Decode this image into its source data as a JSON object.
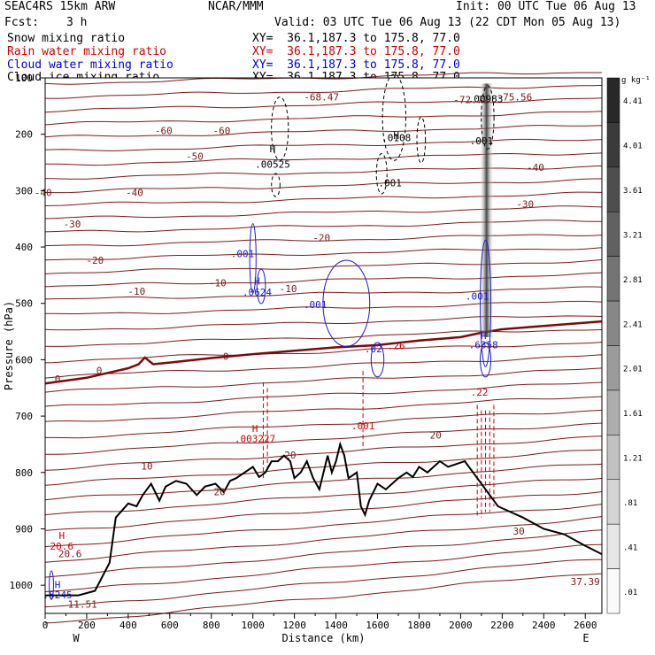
{
  "header": {
    "model": "SEAC4RS 15km ARW",
    "center": "NCAR/MMM",
    "init": "Init: 00 UTC Tue 06 Aug 13",
    "fcst_label": "Fcst:",
    "fcst_value": "3 h",
    "valid": "Valid: 03 UTC Tue 06 Aug 13 (22 CDT Mon 05 Aug 13)"
  },
  "fields": [
    {
      "name": "Snow mixing ratio",
      "xy": "XY=  36.1,187.3 to 175.8, 77.0",
      "color": "#000000"
    },
    {
      "name": "Rain water mixing ratio",
      "xy": "XY=  36.1,187.3 to 175.8, 77.0",
      "color": "#cc0000"
    },
    {
      "name": "Cloud water mixing ratio",
      "xy": "XY=  36.1,187.3 to 175.8, 77.0",
      "color": "#0000cc"
    },
    {
      "name": "Cloud ice mixing ratio",
      "xy": "XY=  36.1,187.3 to 175.8, 77.0",
      "color": "#000000"
    }
  ],
  "chart_data": {
    "type": "cross-section",
    "xlabel": "Distance (km)",
    "ylabel": "Pressure (hPa)",
    "xlim": [
      0,
      2680
    ],
    "ylim": [
      1050,
      100
    ],
    "x_ticks": [
      0,
      200,
      400,
      600,
      800,
      1000,
      1200,
      1400,
      1600,
      1800,
      2000,
      2200,
      2400,
      2600
    ],
    "y_ticks": [
      100,
      200,
      300,
      400,
      500,
      600,
      700,
      800,
      900,
      1000
    ],
    "x_end_labels": {
      "left": "W",
      "right": "E"
    },
    "colorbar": {
      "unit": "g kg⁻¹",
      "labels": [
        "4.41",
        "4.01",
        "3.61",
        "3.21",
        "2.81",
        "2.41",
        "2.01",
        "1.61",
        "1.21",
        ".81",
        ".41",
        ".01"
      ]
    },
    "terrain": [
      [
        0,
        1018
      ],
      [
        160,
        1018
      ],
      [
        240,
        1010
      ],
      [
        310,
        960
      ],
      [
        340,
        880
      ],
      [
        400,
        855
      ],
      [
        440,
        860
      ],
      [
        470,
        840
      ],
      [
        510,
        820
      ],
      [
        550,
        850
      ],
      [
        580,
        825
      ],
      [
        630,
        815
      ],
      [
        680,
        820
      ],
      [
        730,
        840
      ],
      [
        770,
        825
      ],
      [
        820,
        820
      ],
      [
        860,
        835
      ],
      [
        890,
        815
      ],
      [
        920,
        810
      ],
      [
        960,
        800
      ],
      [
        1000,
        790
      ],
      [
        1030,
        808
      ],
      [
        1060,
        800
      ],
      [
        1090,
        780
      ],
      [
        1120,
        780
      ],
      [
        1150,
        770
      ],
      [
        1180,
        780
      ],
      [
        1200,
        810
      ],
      [
        1230,
        800
      ],
      [
        1260,
        780
      ],
      [
        1290,
        810
      ],
      [
        1320,
        830
      ],
      [
        1340,
        800
      ],
      [
        1360,
        770
      ],
      [
        1380,
        800
      ],
      [
        1400,
        780
      ],
      [
        1420,
        750
      ],
      [
        1440,
        770
      ],
      [
        1460,
        810
      ],
      [
        1500,
        800
      ],
      [
        1520,
        860
      ],
      [
        1540,
        875
      ],
      [
        1560,
        850
      ],
      [
        1600,
        820
      ],
      [
        1640,
        830
      ],
      [
        1670,
        820
      ],
      [
        1700,
        810
      ],
      [
        1740,
        800
      ],
      [
        1770,
        808
      ],
      [
        1800,
        790
      ],
      [
        1840,
        800
      ],
      [
        1870,
        790
      ],
      [
        1900,
        780
      ],
      [
        1940,
        790
      ],
      [
        1980,
        785
      ],
      [
        2020,
        780
      ],
      [
        2060,
        800
      ],
      [
        2100,
        820
      ],
      [
        2140,
        840
      ],
      [
        2180,
        860
      ],
      [
        2240,
        870
      ],
      [
        2300,
        880
      ],
      [
        2400,
        900
      ],
      [
        2500,
        910
      ],
      [
        2600,
        930
      ],
      [
        2680,
        945
      ]
    ],
    "temperature_labels": [
      "-30",
      "-40",
      "-40",
      "-50",
      "-60",
      "-60",
      "-40",
      "-30",
      "-20",
      "-20",
      "-10",
      "-10",
      "-10",
      "0",
      "0",
      "0",
      "10",
      "20",
      "20",
      "20",
      "30",
      "-68.47",
      "-72.72",
      "-75.56",
      "20.6",
      "37.39",
      "11.51"
    ],
    "zero_line": [
      [
        0,
        642
      ],
      [
        200,
        632
      ],
      [
        400,
        615
      ],
      [
        450,
        608
      ],
      [
        480,
        596
      ],
      [
        520,
        608
      ],
      [
        600,
        605
      ],
      [
        800,
        597
      ],
      [
        1000,
        590
      ],
      [
        1200,
        584
      ],
      [
        1400,
        578
      ],
      [
        1600,
        574
      ],
      [
        1800,
        566
      ],
      [
        2000,
        560
      ],
      [
        2100,
        552
      ],
      [
        2200,
        546
      ],
      [
        2400,
        540
      ],
      [
        2680,
        532
      ]
    ],
    "labels": {
      "black_H": [
        {
          "text": "H",
          "x": 1095,
          "y": 232
        },
        {
          "text": ".00525",
          "x": 1095,
          "y": 259
        },
        {
          "text": "H",
          "x": 1690,
          "y": 208
        },
        {
          "text": ".0108",
          "x": 1690,
          "y": 212
        },
        {
          "text": ".001",
          "x": 1660,
          "y": 292
        },
        {
          "text": ".00983",
          "x": 2120,
          "y": 143
        },
        {
          "text": ".001",
          "x": 2100,
          "y": 218
        }
      ],
      "red_H": [
        {
          "text": "H",
          "x": 1010,
          "y": 728
        },
        {
          "text": ".003227",
          "x": 1010,
          "y": 746
        },
        {
          "text": ".001",
          "x": 1530,
          "y": 723
        },
        {
          "text": ".22",
          "x": 2090,
          "y": 664
        },
        {
          "text": ".26",
          "x": 1690,
          "y": 581
        },
        {
          "text": "H",
          "x": 80,
          "y": 918
        },
        {
          "text": "20.6",
          "x": 80,
          "y": 937
        }
      ],
      "blue_H": [
        {
          "text": ".001",
          "x": 950,
          "y": 418
        },
        {
          "text": "H",
          "x": 1020,
          "y": 467
        },
        {
          "text": ".0624",
          "x": 1020,
          "y": 486
        },
        {
          "text": ".001",
          "x": 1300,
          "y": 508
        },
        {
          "text": ".02",
          "x": 1580,
          "y": 587
        },
        {
          "text": ".001",
          "x": 2080,
          "y": 493
        },
        {
          "text": "H",
          "x": 2110,
          "y": 563
        },
        {
          "text": ".6358",
          "x": 2110,
          "y": 580
        },
        {
          "text": "H",
          "x": 60,
          "y": 1005
        },
        {
          "text": ".5245",
          "x": 60,
          "y": 1023
        }
      ]
    }
  }
}
